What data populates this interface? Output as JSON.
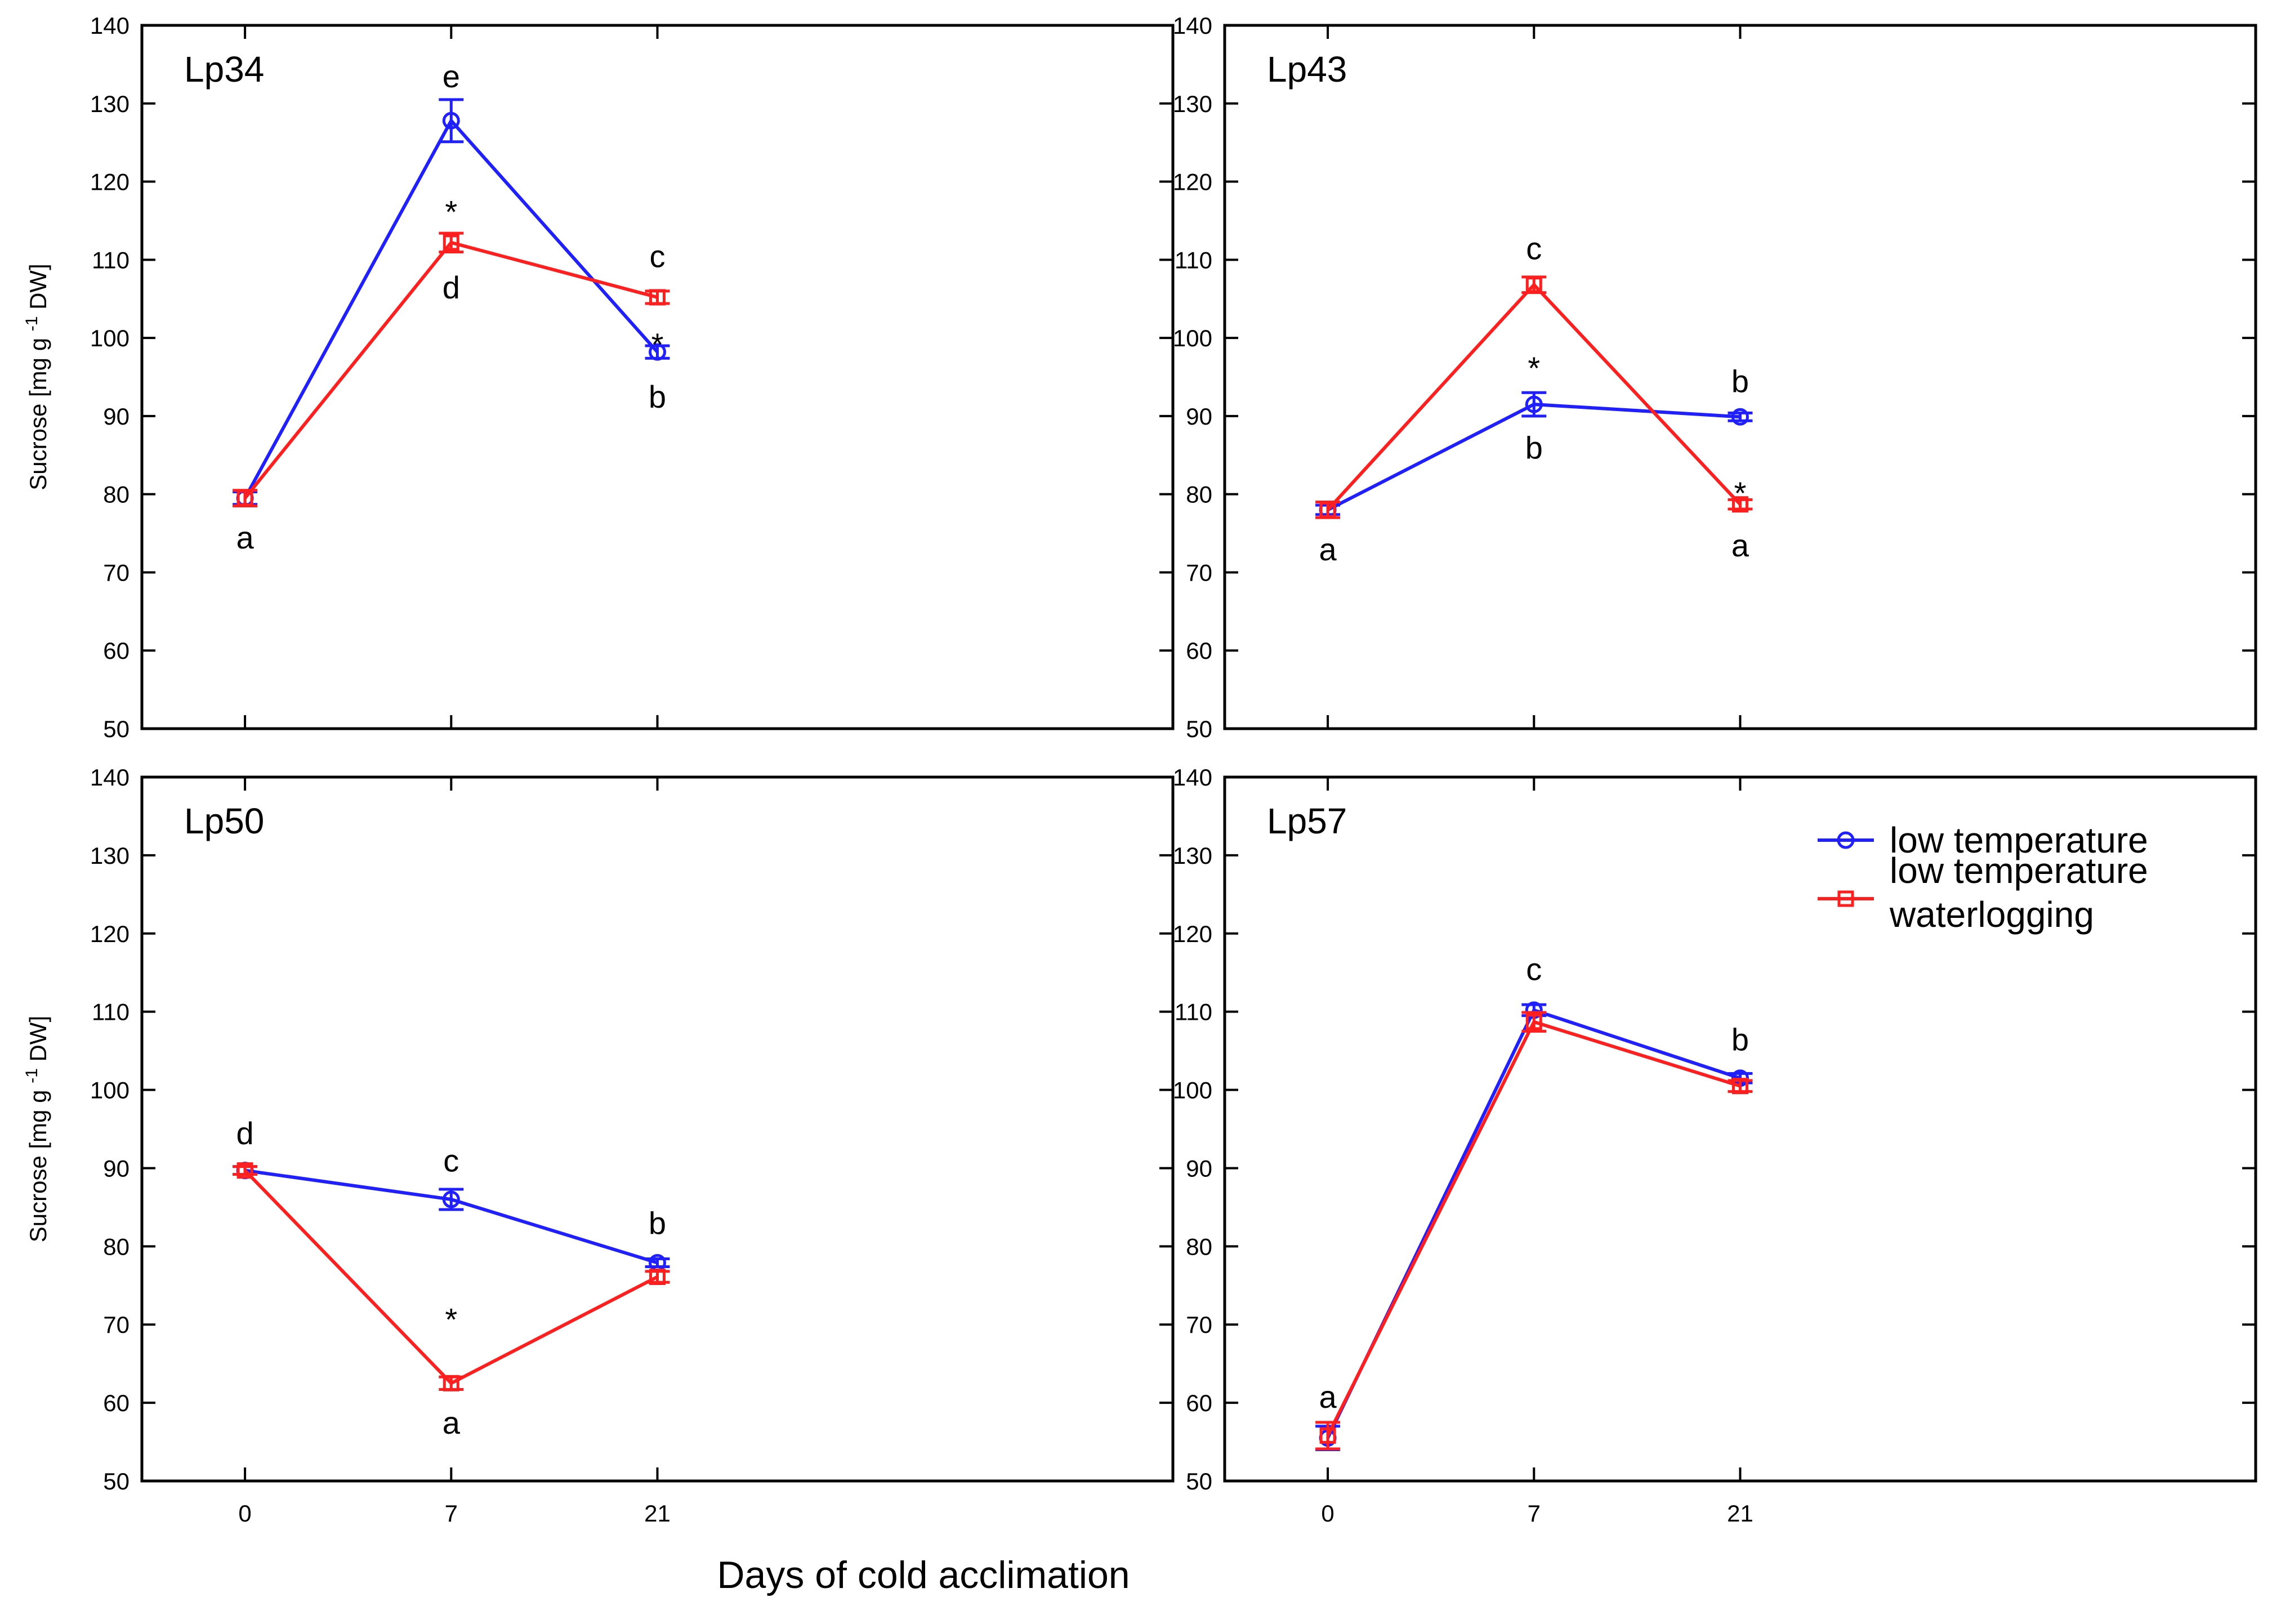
{
  "chart_data": {
    "type": "line",
    "xlabel": "Days of cold acclimation",
    "ylabel": "Sucrose [mg g -1 DW]",
    "ylabel_parts": {
      "before": "Sucrose [mg g",
      "sup": "-1",
      "after": " DW]"
    },
    "ylim": [
      50,
      140
    ],
    "yticks": [
      50,
      60,
      70,
      80,
      90,
      100,
      110,
      120,
      130,
      140
    ],
    "categories": [
      "0",
      "7",
      "21"
    ],
    "legend": {
      "placement": "top-right of panel Lp57",
      "entries": [
        {
          "name": "low temperature",
          "lines": [
            "low temperature"
          ],
          "color": "#1f1fff",
          "marker": "circle"
        },
        {
          "name": "low temperature waterlogging",
          "lines": [
            "low temperature",
            "waterlogging"
          ],
          "color": "#ff1f1f",
          "marker": "square"
        }
      ]
    },
    "panels": [
      {
        "title": "Lp34",
        "series": [
          {
            "name": "low temperature",
            "values": [
              79.5,
              127.8,
              98.2
            ],
            "errors": [
              0.8,
              2.7,
              0.8
            ]
          },
          {
            "name": "low temperature waterlogging",
            "values": [
              79.5,
              112.2,
              105.2
            ],
            "errors": [
              1.0,
              1.2,
              0.8
            ]
          }
        ],
        "annotations": [
          {
            "text": "a",
            "x": "0",
            "y": 74.5
          },
          {
            "text": "e",
            "x": "7",
            "y": 133.5
          },
          {
            "text": "*",
            "x": "7",
            "y": 117.5
          },
          {
            "text": "d",
            "x": "7",
            "y": 106.5
          },
          {
            "text": "c",
            "x": "21",
            "y": 110.5
          },
          {
            "text": "*",
            "x": "21",
            "y": 100.5
          },
          {
            "text": "b",
            "x": "21",
            "y": 92.5
          }
        ]
      },
      {
        "title": "Lp43",
        "series": [
          {
            "name": "low temperature",
            "values": [
              78.0,
              91.5,
              89.9
            ],
            "errors": [
              0.6,
              1.5,
              0.5
            ]
          },
          {
            "name": "low temperature waterlogging",
            "values": [
              78.0,
              106.8,
              78.7
            ],
            "errors": [
              1.0,
              1.0,
              0.6
            ]
          }
        ],
        "annotations": [
          {
            "text": "a",
            "x": "0",
            "y": 73.0
          },
          {
            "text": "c",
            "x": "7",
            "y": 111.5
          },
          {
            "text": "*",
            "x": "7",
            "y": 97.5
          },
          {
            "text": "b",
            "x": "7",
            "y": 86.0
          },
          {
            "text": "b",
            "x": "21",
            "y": 94.5
          },
          {
            "text": "*",
            "x": "21",
            "y": 81.5
          },
          {
            "text": "a",
            "x": "21",
            "y": 73.5
          }
        ]
      },
      {
        "title": "Lp50",
        "series": [
          {
            "name": "low temperature",
            "values": [
              89.7,
              86.0,
              77.9
            ],
            "errors": [
              0.5,
              1.3,
              0.5
            ]
          },
          {
            "name": "low temperature waterlogging",
            "values": [
              89.7,
              62.5,
              76.1
            ],
            "errors": [
              0.5,
              0.8,
              0.7
            ]
          }
        ],
        "annotations": [
          {
            "text": "d",
            "x": "0",
            "y": 94.5
          },
          {
            "text": "c",
            "x": "7",
            "y": 91.0
          },
          {
            "text": "*",
            "x": "7",
            "y": 72.0
          },
          {
            "text": "a",
            "x": "7",
            "y": 57.5
          },
          {
            "text": "b",
            "x": "21",
            "y": 83.0
          }
        ]
      },
      {
        "title": "Lp57",
        "series": [
          {
            "name": "low temperature",
            "values": [
              55.5,
              110.2,
              101.5
            ],
            "errors": [
              1.5,
              0.7,
              0.6
            ]
          },
          {
            "name": "low temperature waterlogging",
            "values": [
              55.8,
              108.7,
              100.5
            ],
            "errors": [
              1.7,
              1.2,
              0.7
            ]
          }
        ],
        "annotations": [
          {
            "text": "a",
            "x": "0",
            "y": 60.8
          },
          {
            "text": "c",
            "x": "7",
            "y": 115.5
          },
          {
            "text": "b",
            "x": "21",
            "y": 106.5
          }
        ]
      }
    ]
  }
}
